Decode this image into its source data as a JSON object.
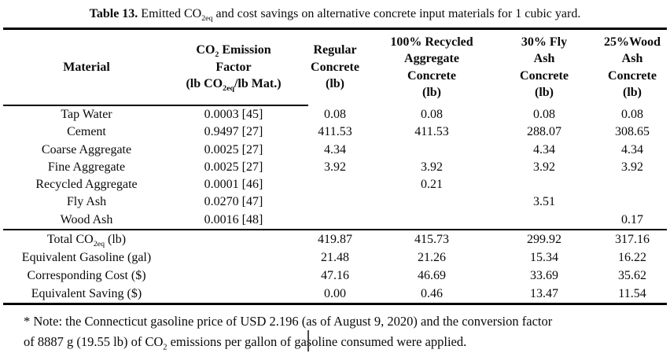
{
  "caption": {
    "rich": "**Table 13.** Emitted CO~2eq~ and cost savings on alternative concrete input materials for 1 cubic yard."
  },
  "table": {
    "header": {
      "columns": [
        {
          "lines": [
            "Material"
          ]
        },
        {
          "lines": [
            "CO~2~ Emission",
            "Factor",
            "(lb CO~2eq~/lb Mat.)"
          ]
        },
        {
          "lines": [
            "Regular",
            "Concrete",
            "(lb)"
          ]
        },
        {
          "lines": [
            "100% Recycled",
            "Aggregate",
            "Concrete",
            "(lb)"
          ]
        },
        {
          "lines": [
            "30% Fly",
            "Ash",
            "Concrete",
            "(lb)"
          ]
        },
        {
          "lines": [
            "25%Wood",
            "Ash",
            "Concrete",
            "(lb)"
          ]
        }
      ]
    },
    "material_rows": [
      {
        "cells": [
          "Tap Water",
          "0.0003 [45]",
          "0.08",
          "0.08",
          "0.08",
          "0.08"
        ]
      },
      {
        "cells": [
          "Cement",
          "0.9497 [27]",
          "411.53",
          "411.53",
          "288.07",
          "308.65"
        ]
      },
      {
        "cells": [
          "Coarse Aggregate",
          "0.0025 [27]",
          "4.34",
          "",
          "4.34",
          "4.34"
        ]
      },
      {
        "cells": [
          "Fine Aggregate",
          "0.0025 [27]",
          "3.92",
          "3.92",
          "3.92",
          "3.92"
        ]
      },
      {
        "cells": [
          "Recycled Aggregate",
          "0.0001 [46]",
          "",
          "0.21",
          "",
          ""
        ]
      },
      {
        "cells": [
          "Fly Ash",
          "0.0270 [47]",
          "",
          "",
          "3.51",
          ""
        ]
      },
      {
        "cells": [
          "Wood Ash",
          "0.0016 [48]",
          "",
          "",
          "",
          "0.17"
        ]
      }
    ],
    "summary_rows": [
      {
        "cells": [
          "Total CO~2eq~ (lb)",
          "",
          "419.87",
          "415.73",
          "299.92",
          "317.16"
        ]
      },
      {
        "cells": [
          "Equivalent Gasoline (gal)",
          "",
          "21.48",
          "21.26",
          "15.34",
          "16.22"
        ]
      },
      {
        "cells": [
          "Corresponding Cost ($)",
          "",
          "47.16",
          "46.69",
          "33.69",
          "35.62"
        ]
      },
      {
        "cells": [
          "Equivalent Saving ($)",
          "",
          "0.00",
          "0.46",
          "13.47",
          "11.54"
        ]
      }
    ]
  },
  "footnote": {
    "line1": "* Note: the Connecticut gasoline price of USD 2.196 (as of August 9, 2020) and the conversion factor",
    "line2": "of 8887 g (19.55 lb) of CO~2~ emissions per gallon of gasoline consumed were applied."
  }
}
